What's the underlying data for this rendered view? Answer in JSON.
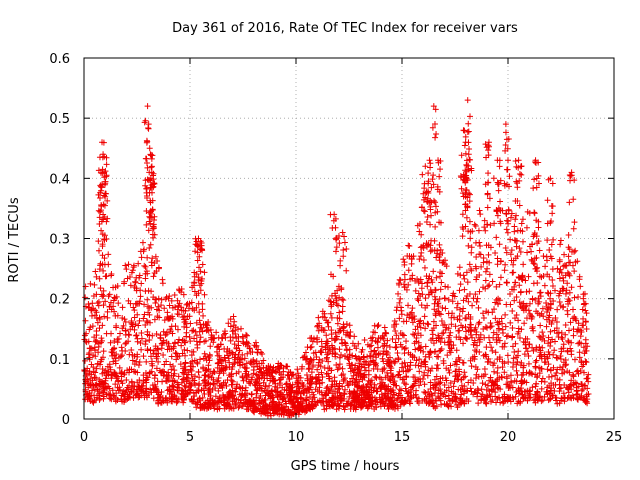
{
  "chart_data": {
    "type": "scatter",
    "title": "Day 361 of 2016, Rate Of TEC Index for receiver vars",
    "xlabel": "GPS time / hours",
    "ylabel": "ROTI / TECUs",
    "xlim": [
      0,
      25
    ],
    "ylim": [
      0,
      0.6
    ],
    "x_ticks": [
      0,
      5,
      10,
      15,
      20,
      25
    ],
    "y_ticks": [
      0,
      0.1,
      0.2,
      0.3,
      0.4,
      0.5,
      0.6
    ],
    "x_tick_labels": [
      "0",
      "5",
      "10",
      "15",
      "20",
      "25"
    ],
    "y_tick_labels": [
      "0",
      "0.1",
      "0.2",
      "0.3",
      "0.4",
      "0.5",
      "0.6"
    ],
    "grid": true,
    "marker": "+",
    "color": "#ee0000",
    "series": [
      {
        "name": "ROTI",
        "profile_hours": [
          0,
          0.5,
          1,
          1.5,
          2,
          2.5,
          3,
          3.5,
          4,
          4.5,
          5,
          5.5,
          6,
          6.5,
          7,
          7.5,
          8,
          8.5,
          9,
          9.5,
          10,
          10.5,
          11,
          11.5,
          12,
          12.5,
          13,
          13.5,
          14,
          14.5,
          15,
          15.5,
          16,
          16.5,
          17,
          17.5,
          18,
          18.5,
          19,
          19.5,
          20,
          20.5,
          21,
          21.5,
          22,
          22.5,
          23,
          23.5,
          23.8
        ],
        "profile_upper": [
          0.22,
          0.25,
          0.3,
          0.22,
          0.27,
          0.25,
          0.34,
          0.26,
          0.2,
          0.22,
          0.2,
          0.3,
          0.15,
          0.14,
          0.17,
          0.15,
          0.14,
          0.1,
          0.09,
          0.1,
          0.08,
          0.12,
          0.16,
          0.2,
          0.22,
          0.17,
          0.12,
          0.14,
          0.18,
          0.12,
          0.27,
          0.3,
          0.36,
          0.3,
          0.28,
          0.2,
          0.36,
          0.33,
          0.38,
          0.35,
          0.35,
          0.36,
          0.35,
          0.3,
          0.28,
          0.3,
          0.28,
          0.25,
          0.16
        ],
        "profile_lower": [
          0.03,
          0.03,
          0.04,
          0.03,
          0.03,
          0.04,
          0.04,
          0.03,
          0.03,
          0.03,
          0.03,
          0.02,
          0.02,
          0.02,
          0.02,
          0.02,
          0.015,
          0.01,
          0.01,
          0.01,
          0.01,
          0.015,
          0.02,
          0.02,
          0.02,
          0.02,
          0.02,
          0.02,
          0.02,
          0.02,
          0.02,
          0.03,
          0.03,
          0.02,
          0.02,
          0.02,
          0.03,
          0.03,
          0.03,
          0.03,
          0.03,
          0.03,
          0.03,
          0.03,
          0.03,
          0.03,
          0.03,
          0.03,
          0.03
        ],
        "peaks": [
          {
            "x": 0.85,
            "y": 0.46
          },
          {
            "x": 0.9,
            "y": 0.44
          },
          {
            "x": 0.95,
            "y": 0.41
          },
          {
            "x": 0.85,
            "y": 0.39
          },
          {
            "x": 3.0,
            "y": 0.52
          },
          {
            "x": 3.05,
            "y": 0.49
          },
          {
            "x": 3.1,
            "y": 0.45
          },
          {
            "x": 3.2,
            "y": 0.41
          },
          {
            "x": 3.25,
            "y": 0.39
          },
          {
            "x": 5.4,
            "y": 0.3
          },
          {
            "x": 11.8,
            "y": 0.34
          },
          {
            "x": 12.2,
            "y": 0.31
          },
          {
            "x": 16.5,
            "y": 0.52
          },
          {
            "x": 16.3,
            "y": 0.43
          },
          {
            "x": 16.1,
            "y": 0.42
          },
          {
            "x": 16.7,
            "y": 0.43
          },
          {
            "x": 18.1,
            "y": 0.53
          },
          {
            "x": 17.9,
            "y": 0.48
          },
          {
            "x": 18.0,
            "y": 0.46
          },
          {
            "x": 18.15,
            "y": 0.44
          },
          {
            "x": 19.1,
            "y": 0.46
          },
          {
            "x": 19.5,
            "y": 0.43
          },
          {
            "x": 19.9,
            "y": 0.49
          },
          {
            "x": 20.5,
            "y": 0.43
          },
          {
            "x": 21.3,
            "y": 0.43
          },
          {
            "x": 22.0,
            "y": 0.4
          },
          {
            "x": 23.0,
            "y": 0.41
          }
        ]
      }
    ]
  }
}
